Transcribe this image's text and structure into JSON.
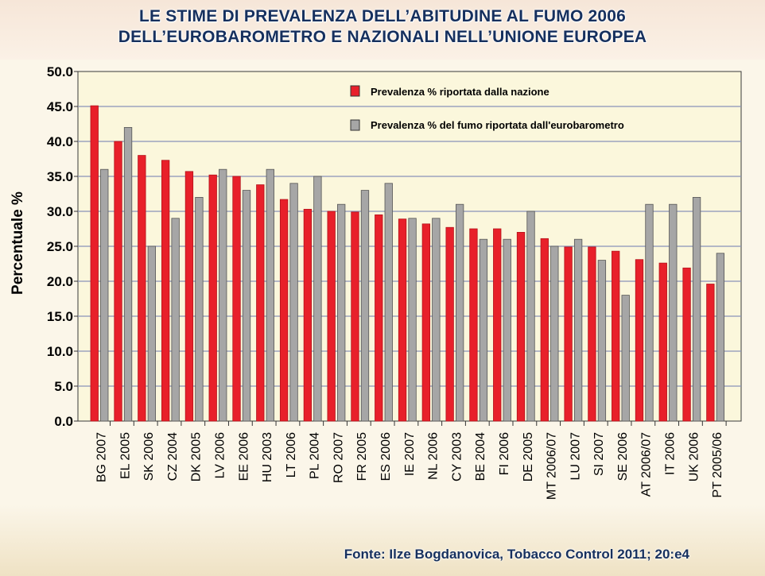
{
  "title_line1": "LE STIME DI PREVALENZA DELL’ABITUDINE AL FUMO 2006",
  "title_line2": "DELL’EUROBAROMETRO E NAZIONALI NELL’UNIONE EUROPEA",
  "source": "Fonte: Ilze Bogdanovica, Tobacco Control 2011; 20:e4",
  "colors": {
    "national": "#e8202a",
    "eurobarometer": "#a6a6a6",
    "plot_bg": "#fbf7dc",
    "grid": "#8a93b8"
  },
  "chart_data": {
    "type": "bar",
    "ylabel": "Percentuale %",
    "ylim": [
      0,
      50
    ],
    "yticks": [
      "0.0",
      "5.0",
      "10.0",
      "15.0",
      "20.0",
      "25.0",
      "30.0",
      "35.0",
      "40.0",
      "45.0",
      "50.0"
    ],
    "grid": true,
    "legend_position": "top-right",
    "categories": [
      "BG 2007",
      "EL 2005",
      "SK 2006",
      "CZ 2004",
      "DK 2005",
      "LV 2006",
      "EE 2006",
      "HU 2003",
      "LT 2006",
      "PL 2004",
      "RO 2007",
      "FR 2005",
      "ES 2006",
      "IE 2007",
      "NL 2006",
      "CY 2003",
      "BE 2004",
      "FI 2006",
      "DE 2005",
      "MT 2006/07",
      "LU 2007",
      "SI 2007",
      "SE 2006",
      "AT 2006/07",
      "IT 2006",
      "UK 2006",
      "PT 2005/06"
    ],
    "series": [
      {
        "name": "Prevalenza % riportata dalla nazione",
        "color": "#e8202a",
        "values": [
          45.1,
          40.0,
          38.0,
          37.3,
          35.7,
          35.2,
          35.0,
          33.8,
          31.7,
          30.3,
          30.0,
          29.9,
          29.5,
          28.9,
          28.2,
          27.7,
          27.5,
          27.5,
          27.0,
          26.1,
          24.9,
          24.9,
          24.3,
          23.1,
          22.6,
          21.9,
          19.6
        ]
      },
      {
        "name": "Prevalenza % del fumo riportata dall'eurobarometro",
        "color": "#a6a6a6",
        "values": [
          36,
          42,
          25,
          29,
          32,
          36,
          33,
          36,
          34,
          35,
          31,
          33,
          34,
          29,
          29,
          31,
          26,
          26,
          30,
          25,
          26,
          23,
          18,
          31,
          31,
          32,
          24
        ]
      }
    ]
  }
}
